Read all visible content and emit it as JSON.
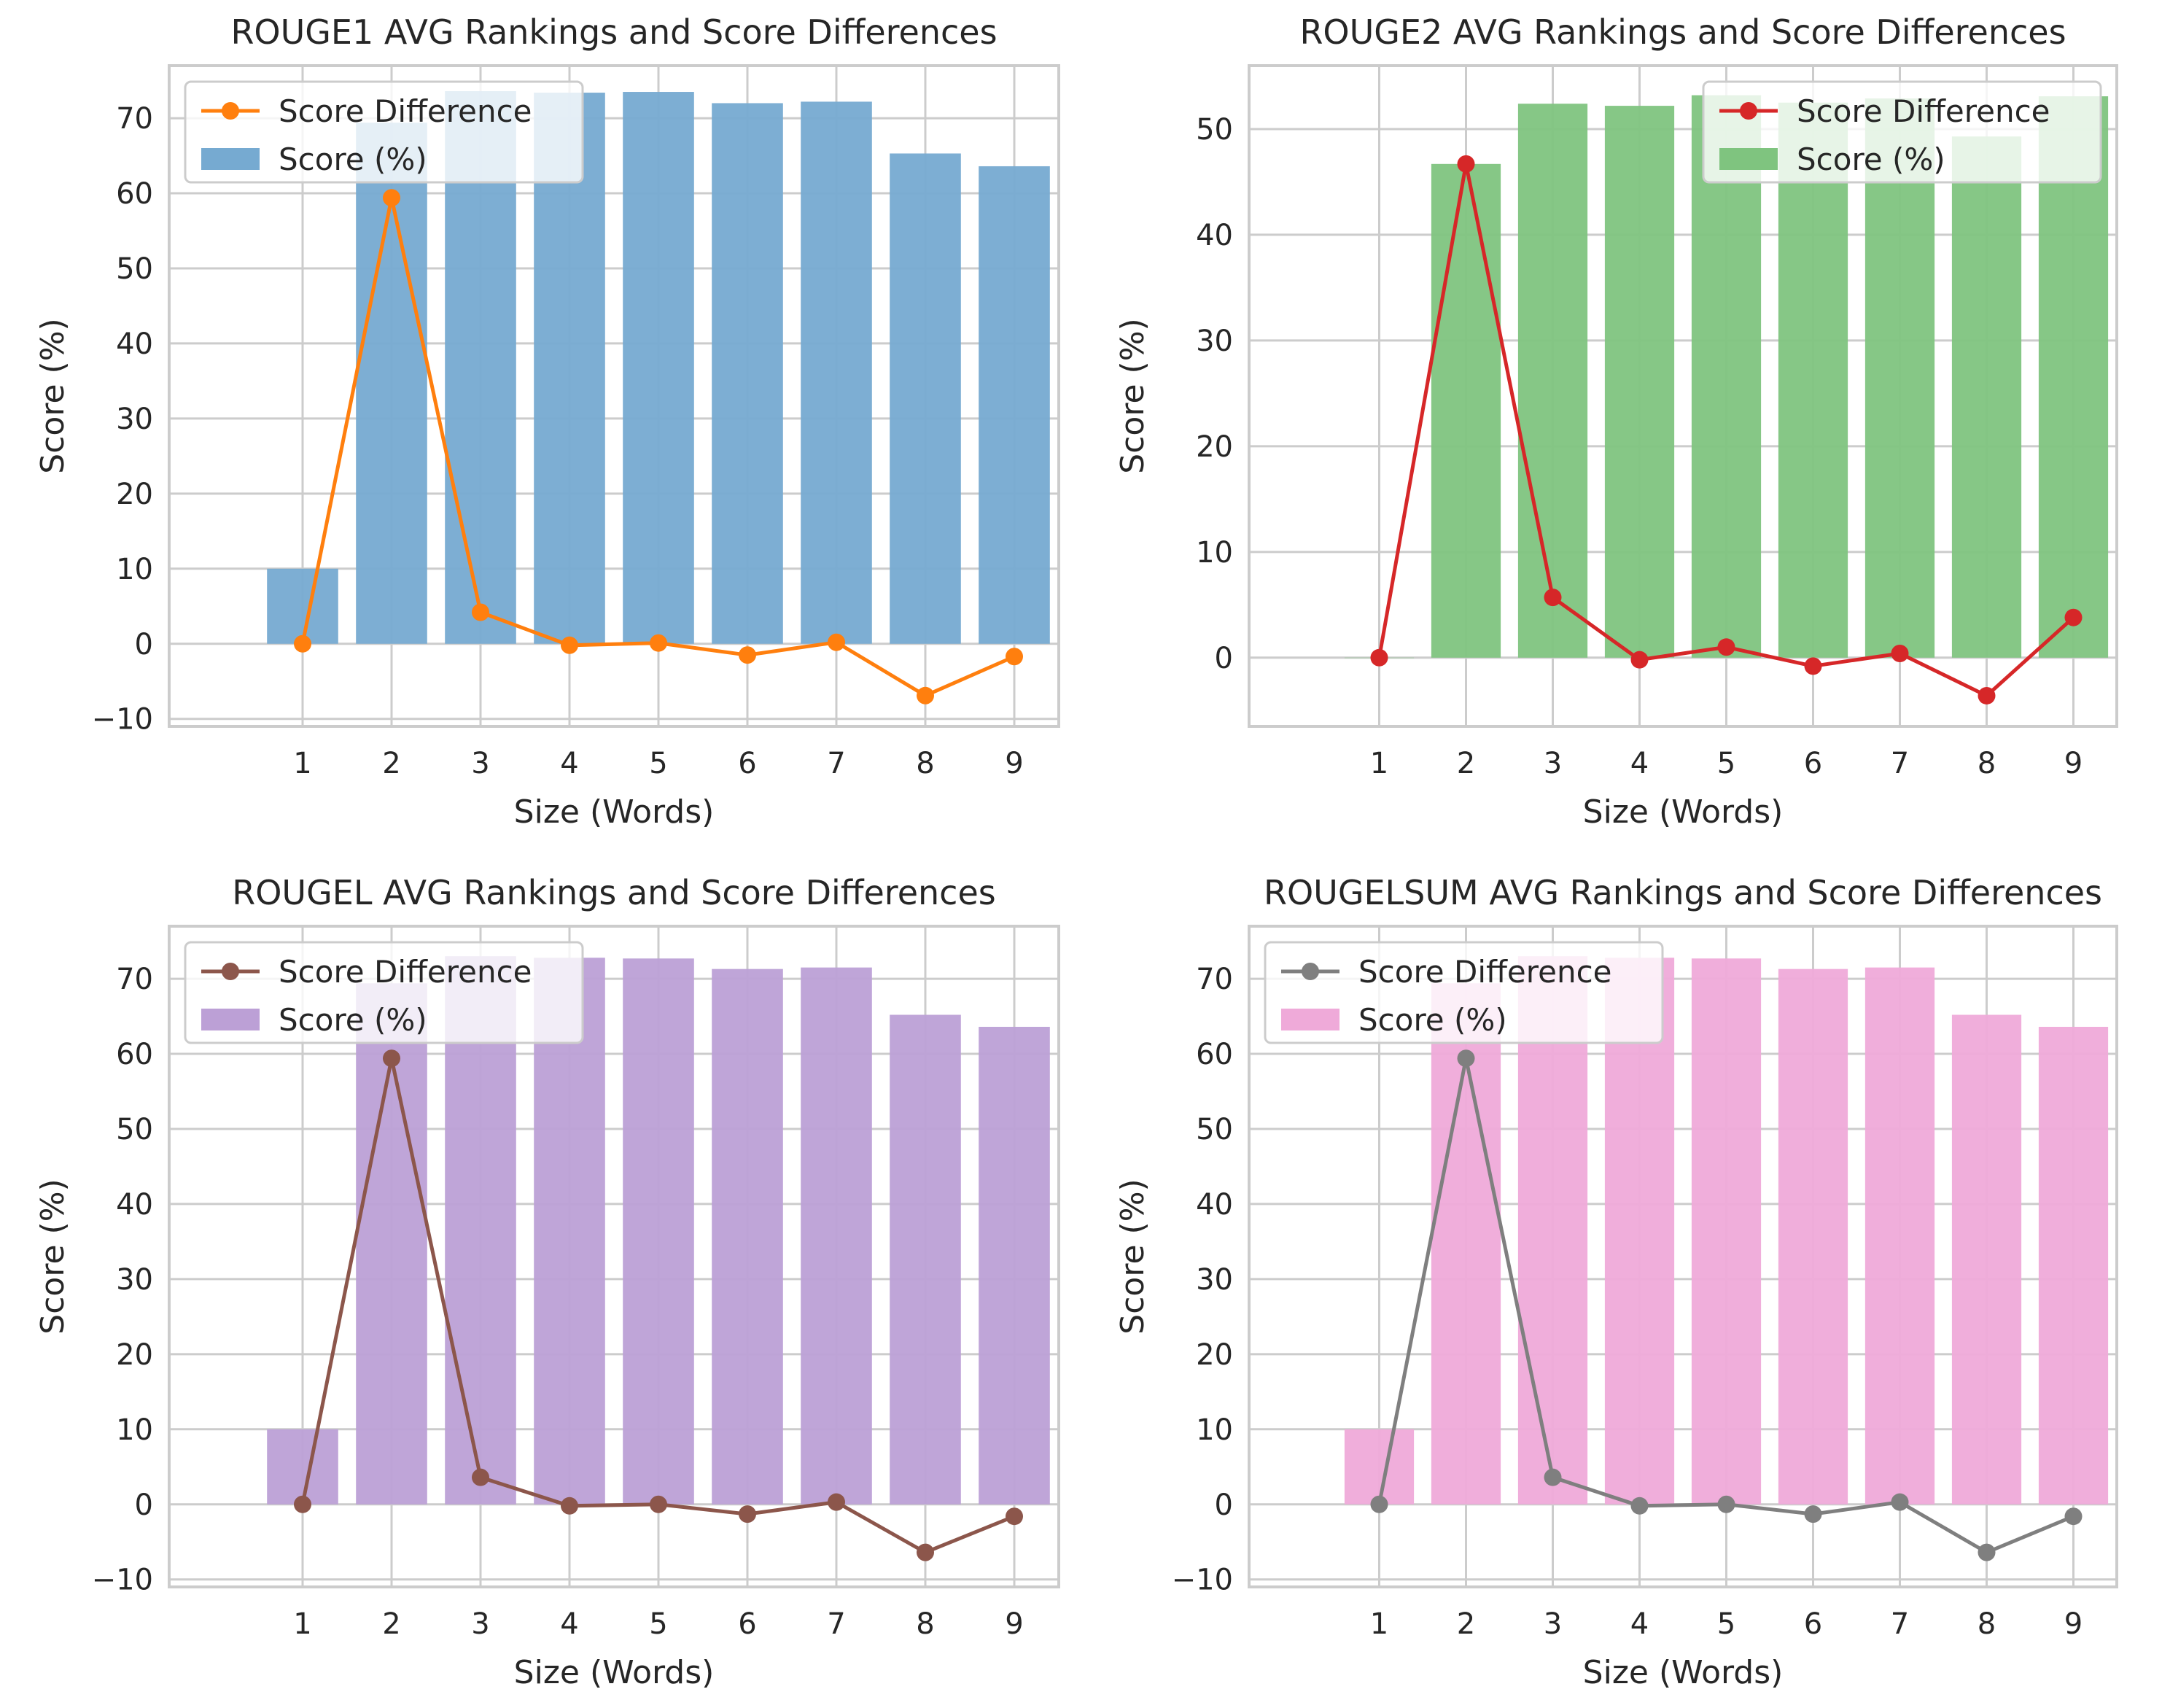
{
  "chart_data": [
    {
      "type": "bar+line",
      "title": "ROUGE1 AVG Rankings and Score Differences",
      "xlabel": "Size (Words)",
      "ylabel": "Score (%)",
      "categories": [
        "1",
        "2",
        "3",
        "4",
        "5",
        "6",
        "7",
        "8",
        "9"
      ],
      "ylim": [
        -11,
        77
      ],
      "yticks": [
        -10,
        0,
        10,
        20,
        30,
        40,
        50,
        60,
        70
      ],
      "ytick_labels": [
        "−10",
        "0",
        "10",
        "20",
        "30",
        "40",
        "50",
        "60",
        "70"
      ],
      "grid": true,
      "legend_position": "upper-left",
      "bar_series": {
        "name": "Score (%)",
        "color": "#76aad1",
        "values": [
          10.0,
          69.4,
          73.6,
          73.4,
          73.5,
          72.0,
          72.2,
          65.3,
          63.6
        ]
      },
      "line_series": {
        "name": "Score Difference",
        "color": "#ff7f0e",
        "values": [
          0.0,
          59.4,
          4.2,
          -0.2,
          0.1,
          -1.5,
          0.2,
          -6.9,
          -1.7
        ]
      }
    },
    {
      "type": "bar+line",
      "title": "ROUGE2 AVG Rankings and Score Differences",
      "xlabel": "Size (Words)",
      "ylabel": "Score (%)",
      "categories": [
        "1",
        "2",
        "3",
        "4",
        "5",
        "6",
        "7",
        "8",
        "9"
      ],
      "ylim": [
        -6.5,
        56
      ],
      "yticks": [
        0,
        10,
        20,
        30,
        40,
        50
      ],
      "ytick_labels": [
        "0",
        "10",
        "20",
        "30",
        "40",
        "50"
      ],
      "grid": true,
      "legend_position": "upper-right",
      "bar_series": {
        "name": "Score (%)",
        "color": "#7fc47f",
        "values": [
          0.0,
          46.7,
          52.4,
          52.2,
          53.2,
          52.5,
          52.9,
          49.3,
          53.1
        ]
      },
      "line_series": {
        "name": "Score Difference",
        "color": "#d62728",
        "values": [
          0.0,
          46.7,
          5.7,
          -0.2,
          1.0,
          -0.8,
          0.4,
          -3.6,
          3.8
        ]
      }
    },
    {
      "type": "bar+line",
      "title": "ROUGEL AVG Rankings and Score Differences",
      "xlabel": "Size (Words)",
      "ylabel": "Score (%)",
      "categories": [
        "1",
        "2",
        "3",
        "4",
        "5",
        "6",
        "7",
        "8",
        "9"
      ],
      "ylim": [
        -11,
        77
      ],
      "yticks": [
        -10,
        0,
        10,
        20,
        30,
        40,
        50,
        60,
        70
      ],
      "ytick_labels": [
        "−10",
        "0",
        "10",
        "20",
        "30",
        "40",
        "50",
        "60",
        "70"
      ],
      "grid": true,
      "legend_position": "upper-left",
      "bar_series": {
        "name": "Score (%)",
        "color": "#bca0d6",
        "values": [
          10.0,
          69.4,
          73.0,
          72.8,
          72.7,
          71.3,
          71.5,
          65.2,
          63.6
        ]
      },
      "line_series": {
        "name": "Score Difference",
        "color": "#8c564b",
        "values": [
          0.0,
          59.4,
          3.6,
          -0.2,
          0.0,
          -1.3,
          0.3,
          -6.4,
          -1.6
        ]
      }
    },
    {
      "type": "bar+line",
      "title": "ROUGELSUM AVG Rankings and Score Differences",
      "xlabel": "Size (Words)",
      "ylabel": "Score (%)",
      "categories": [
        "1",
        "2",
        "3",
        "4",
        "5",
        "6",
        "7",
        "8",
        "9"
      ],
      "ylim": [
        -11,
        77
      ],
      "yticks": [
        -10,
        0,
        10,
        20,
        30,
        40,
        50,
        60,
        70
      ],
      "ytick_labels": [
        "−10",
        "0",
        "10",
        "20",
        "30",
        "40",
        "50",
        "60",
        "70"
      ],
      "grid": true,
      "legend_position": "upper-left",
      "bar_series": {
        "name": "Score (%)",
        "color": "#efaad9",
        "values": [
          10.0,
          69.4,
          73.0,
          72.8,
          72.7,
          71.3,
          71.5,
          65.2,
          63.6
        ]
      },
      "line_series": {
        "name": "Score Difference",
        "color": "#7f7f7f",
        "values": [
          0.0,
          59.4,
          3.6,
          -0.2,
          0.0,
          -1.3,
          0.3,
          -6.4,
          -1.6
        ]
      }
    }
  ]
}
